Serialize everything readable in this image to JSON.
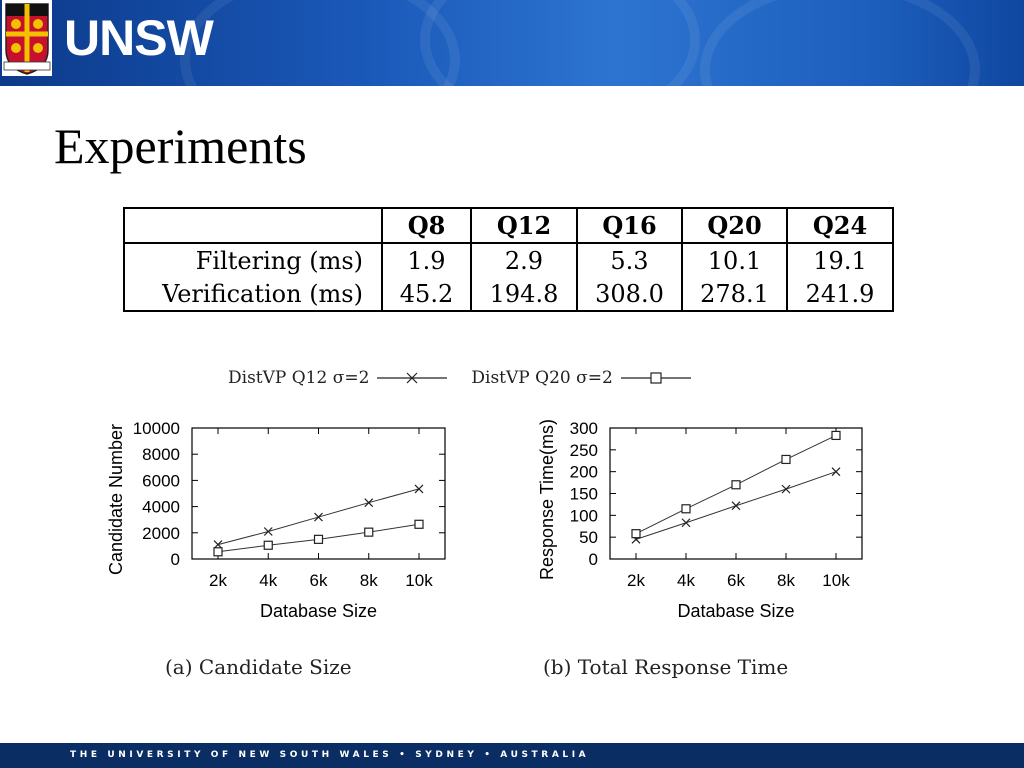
{
  "header": {
    "logo_text": "UNSW"
  },
  "slide": {
    "title": "Experiments"
  },
  "table": {
    "columns": [
      "",
      "Q8",
      "Q12",
      "Q16",
      "Q20",
      "Q24"
    ],
    "rows": [
      {
        "label": "Filtering (ms)",
        "values": [
          "1.9",
          "2.9",
          "5.3",
          "10.1",
          "19.1"
        ]
      },
      {
        "label": "Verification (ms)",
        "values": [
          "45.2",
          "194.8",
          "308.0",
          "278.1",
          "241.9"
        ]
      }
    ]
  },
  "legend": {
    "items": [
      {
        "label": "DistVP Q12 σ=2",
        "marker": "cross"
      },
      {
        "label": "DistVP Q20 σ=2",
        "marker": "square"
      }
    ]
  },
  "chart_data": [
    {
      "type": "line",
      "caption": "(a) Candidate Size",
      "xlabel": "Database Size",
      "ylabel": "Candidate Number",
      "x": [
        "2k",
        "4k",
        "6k",
        "8k",
        "10k"
      ],
      "ylim": [
        0,
        10000
      ],
      "yticks": [
        "0",
        "2000",
        "4000",
        "6000",
        "8000",
        "10000"
      ],
      "series": [
        {
          "name": "DistVP Q12 σ=2",
          "marker": "cross",
          "values": [
            1100,
            2100,
            3200,
            4300,
            5350
          ]
        },
        {
          "name": "DistVP Q20 σ=2",
          "marker": "square",
          "values": [
            550,
            1050,
            1500,
            2050,
            2650
          ]
        }
      ]
    },
    {
      "type": "line",
      "caption": "(b) Total Response Time",
      "xlabel": "Database Size",
      "ylabel": "Response Time(ms)",
      "x": [
        "2k",
        "4k",
        "6k",
        "8k",
        "10k"
      ],
      "ylim": [
        0,
        300
      ],
      "yticks": [
        "0",
        "50",
        "100",
        "150",
        "200",
        "250",
        "300"
      ],
      "series": [
        {
          "name": "DistVP Q12 σ=2",
          "marker": "cross",
          "values": [
            45,
            83,
            122,
            160,
            200
          ]
        },
        {
          "name": "DistVP Q20 σ=2",
          "marker": "square",
          "values": [
            58,
            115,
            170,
            228,
            283
          ]
        }
      ]
    }
  ],
  "footer": {
    "text": "THE UNIVERSITY OF NEW SOUTH WALES • SYDNEY • AUSTRALIA"
  }
}
